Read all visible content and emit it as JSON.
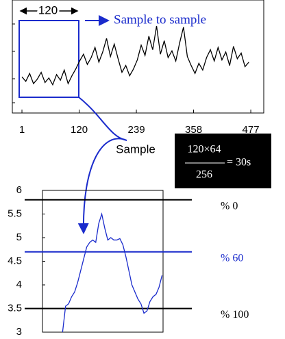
{
  "chart_data": [
    {
      "type": "line",
      "color": "#000000",
      "x": [
        1,
        9,
        17,
        25,
        33,
        41,
        49,
        57,
        65,
        73,
        81,
        89,
        97,
        105,
        113,
        121,
        129,
        137,
        145,
        153,
        161,
        169,
        177,
        185,
        193,
        201,
        209,
        217,
        225,
        233,
        241,
        249,
        257,
        265,
        273,
        281,
        289,
        297,
        305,
        313,
        321,
        329,
        337,
        345,
        353,
        361,
        369,
        377,
        385,
        393,
        401,
        409,
        417,
        425,
        433,
        441,
        449,
        457,
        465,
        473
      ],
      "values": [
        3.2,
        2.8,
        3.5,
        2.6,
        3.0,
        3.6,
        2.7,
        3.1,
        2.5,
        3.4,
        2.9,
        3.8,
        2.6,
        3.3,
        3.9,
        4.6,
        5.2,
        4.3,
        4.9,
        5.8,
        4.5,
        5.4,
        6.6,
        5.0,
        6.1,
        4.8,
        3.6,
        4.2,
        3.3,
        3.9,
        4.7,
        6.0,
        5.1,
        6.8,
        5.6,
        7.7,
        5.2,
        6.4,
        4.9,
        5.5,
        4.6,
        6.2,
        7.6,
        5.0,
        4.2,
        3.5,
        4.4,
        3.8,
        4.9,
        5.6,
        4.6,
        5.8,
        4.7,
        5.4,
        4.2,
        5.9,
        4.8,
        5.3,
        4.1,
        4.5
      ],
      "xlim": [
        -19,
        504
      ],
      "ylim": [
        0,
        10
      ],
      "xticks": [
        1,
        120,
        239,
        358,
        477
      ],
      "xlabel": "Sample",
      "window_label": "120",
      "arrow_label": "Sample to sample",
      "formula": {
        "numerator": "120×64",
        "denominator": "256",
        "result": "= 30s"
      }
    },
    {
      "type": "line",
      "color": "#1a2bcc",
      "x": [
        20,
        23,
        26,
        29,
        32,
        35,
        38,
        41,
        44,
        47,
        50,
        53,
        56,
        59,
        62,
        65,
        68,
        71,
        74,
        77,
        80,
        83,
        86,
        89,
        92,
        95,
        98,
        101,
        104,
        107,
        110,
        113,
        116,
        119
      ],
      "values": [
        3.0,
        3.55,
        3.6,
        3.75,
        3.85,
        4.05,
        4.3,
        4.55,
        4.8,
        4.9,
        4.95,
        4.9,
        5.3,
        5.5,
        5.2,
        4.95,
        5.0,
        4.95,
        4.95,
        4.98,
        4.85,
        4.6,
        4.3,
        4.0,
        3.85,
        3.7,
        3.6,
        3.4,
        3.45,
        3.65,
        3.75,
        3.8,
        3.95,
        4.2
      ],
      "xlim": [
        0,
        120
      ],
      "ylim": [
        3,
        6
      ],
      "yticks": [
        3,
        3.5,
        4,
        4.5,
        5,
        5.5,
        6
      ],
      "reference_lines": [
        {
          "value": 5.8,
          "label": "% 0",
          "color": "#000000"
        },
        {
          "value": 4.7,
          "label": "% 60",
          "color": "#1a2bcc"
        },
        {
          "value": 3.5,
          "label": "% 100",
          "color": "#000000"
        }
      ]
    }
  ]
}
